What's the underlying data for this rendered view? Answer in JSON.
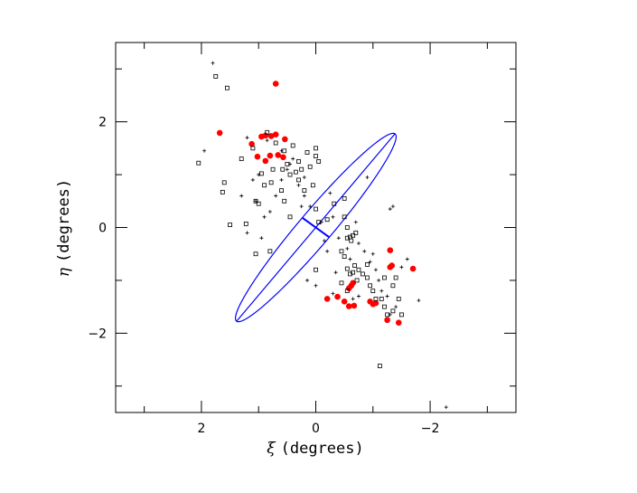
{
  "chart_data": {
    "type": "scatter",
    "xlabel_symbol": "ξ",
    "xlabel_text": "(degrees)",
    "ylabel_symbol": "η",
    "ylabel_text": "(degrees)",
    "xlim": [
      3.5,
      -3.5
    ],
    "ylim": [
      -3.5,
      3.5
    ],
    "x_ticks": [
      2,
      0,
      -2
    ],
    "y_ticks": [
      2,
      0,
      -2
    ],
    "x_tick_labels": [
      "2",
      "0",
      "−2"
    ],
    "y_tick_labels": [
      "2",
      "0",
      "−2"
    ],
    "colors": {
      "axes": "#000000",
      "filled": "#ff0000",
      "ellipse": "#0000ff",
      "open": "#000000"
    },
    "series": [
      {
        "marker": "filled-circle",
        "points": [
          [
            0.7,
            2.72
          ],
          [
            1.68,
            1.79
          ],
          [
            1.12,
            1.58
          ],
          [
            1.02,
            1.34
          ],
          [
            0.95,
            1.72
          ],
          [
            0.88,
            1.74
          ],
          [
            0.78,
            1.73
          ],
          [
            0.7,
            1.76
          ],
          [
            0.54,
            1.67
          ],
          [
            0.8,
            1.36
          ],
          [
            0.88,
            1.26
          ],
          [
            0.66,
            1.37
          ],
          [
            0.57,
            1.33
          ],
          [
            -0.2,
            -1.35
          ],
          [
            -0.38,
            -1.31
          ],
          [
            -0.5,
            -1.4
          ],
          [
            -0.58,
            -1.15
          ],
          [
            -0.62,
            -1.1
          ],
          [
            -0.65,
            -1.05
          ],
          [
            -0.58,
            -1.49
          ],
          [
            -0.67,
            -1.48
          ],
          [
            -0.95,
            -1.4
          ],
          [
            -1.0,
            -1.45
          ],
          [
            -1.05,
            -1.43
          ],
          [
            -1.25,
            -1.75
          ],
          [
            -1.45,
            -1.8
          ],
          [
            -1.3,
            -0.43
          ],
          [
            -1.3,
            -0.75
          ],
          [
            -1.33,
            -0.72
          ],
          [
            -1.7,
            -0.78
          ]
        ]
      },
      {
        "marker": "open-square",
        "points": [
          [
            1.75,
            2.86
          ],
          [
            1.55,
            2.64
          ],
          [
            2.05,
            1.22
          ],
          [
            1.6,
            0.85
          ],
          [
            1.63,
            0.67
          ],
          [
            1.5,
            0.05
          ],
          [
            1.22,
            0.07
          ],
          [
            1.3,
            1.3
          ],
          [
            1.1,
            1.5
          ],
          [
            0.85,
            1.8
          ],
          [
            0.7,
            1.6
          ],
          [
            0.55,
            1.45
          ],
          [
            0.5,
            1.2
          ],
          [
            0.95,
            1.02
          ],
          [
            0.9,
            0.8
          ],
          [
            0.78,
            0.85
          ],
          [
            0.75,
            1.1
          ],
          [
            1.05,
            0.5
          ],
          [
            1.0,
            0.45
          ],
          [
            0.6,
            0.7
          ],
          [
            0.55,
            0.5
          ],
          [
            0.45,
            0.2
          ],
          [
            0.8,
            -0.45
          ],
          [
            1.05,
            -0.5
          ],
          [
            0.1,
            1.15
          ],
          [
            0.0,
            1.35
          ],
          [
            -0.05,
            1.25
          ],
          [
            0.15,
            1.42
          ],
          [
            0.25,
            1.1
          ],
          [
            0.35,
            1.05
          ],
          [
            0.45,
            1.0
          ],
          [
            0.3,
            0.9
          ],
          [
            0.2,
            0.7
          ],
          [
            0.05,
            0.8
          ],
          [
            0.0,
            0.35
          ],
          [
            -0.05,
            0.1
          ],
          [
            -0.2,
            0.15
          ],
          [
            -0.32,
            0.45
          ],
          [
            -0.5,
            0.55
          ],
          [
            -0.5,
            0.2
          ],
          [
            -0.55,
            0.0
          ],
          [
            -0.55,
            -0.2
          ],
          [
            -0.6,
            -0.18
          ],
          [
            -0.62,
            -0.25
          ],
          [
            -0.65,
            -0.15
          ],
          [
            -0.7,
            -0.1
          ],
          [
            -0.45,
            -0.45
          ],
          [
            -0.5,
            -0.55
          ],
          [
            -0.55,
            -0.78
          ],
          [
            -0.6,
            -0.88
          ],
          [
            -0.65,
            -0.85
          ],
          [
            -0.72,
            -1.0
          ],
          [
            -0.75,
            -0.8
          ],
          [
            -0.82,
            -0.88
          ],
          [
            -0.9,
            -0.95
          ],
          [
            -0.95,
            -1.1
          ],
          [
            -1.0,
            -1.2
          ],
          [
            -1.05,
            -1.35
          ],
          [
            -1.15,
            -1.35
          ],
          [
            -1.2,
            -1.5
          ],
          [
            -1.25,
            -1.65
          ],
          [
            -1.35,
            -1.58
          ],
          [
            -1.45,
            -1.35
          ],
          [
            -1.5,
            -1.65
          ],
          [
            -1.2,
            -0.95
          ],
          [
            -1.35,
            -1.1
          ],
          [
            -1.4,
            -0.95
          ],
          [
            -1.12,
            -2.62
          ],
          [
            -0.9,
            -0.7
          ],
          [
            -0.45,
            -1.05
          ],
          [
            -0.55,
            -1.2
          ],
          [
            0.0,
            -0.8
          ],
          [
            0.0,
            1.5
          ],
          [
            0.3,
            1.25
          ],
          [
            0.4,
            1.55
          ],
          [
            0.58,
            1.1
          ],
          [
            -0.68,
            -0.72
          ]
        ]
      },
      {
        "marker": "plus",
        "points": [
          [
            1.8,
            3.11
          ],
          [
            1.95,
            1.45
          ],
          [
            1.2,
            1.7
          ],
          [
            1.1,
            0.9
          ],
          [
            1.0,
            1.0
          ],
          [
            1.05,
            0.5
          ],
          [
            0.8,
            0.3
          ],
          [
            0.7,
            0.6
          ],
          [
            0.6,
            0.9
          ],
          [
            0.5,
            1.1
          ],
          [
            0.4,
            1.3
          ],
          [
            0.3,
            0.8
          ],
          [
            0.2,
            0.6
          ],
          [
            0.1,
            0.4
          ],
          [
            0.9,
            0.2
          ],
          [
            1.3,
            0.6
          ],
          [
            1.2,
            -0.1
          ],
          [
            0.95,
            -0.2
          ],
          [
            -0.1,
            0.1
          ],
          [
            -0.25,
            0.65
          ],
          [
            -0.3,
            0.2
          ],
          [
            -0.4,
            -0.2
          ],
          [
            -0.55,
            -0.4
          ],
          [
            -0.7,
            0.1
          ],
          [
            -0.75,
            -0.3
          ],
          [
            -0.9,
            0.95
          ],
          [
            -0.95,
            -0.65
          ],
          [
            -1.05,
            -0.8
          ],
          [
            -1.1,
            -1.0
          ],
          [
            -1.15,
            -1.2
          ],
          [
            -1.25,
            -1.3
          ],
          [
            -1.3,
            -1.65
          ],
          [
            -1.4,
            -1.5
          ],
          [
            -1.5,
            -0.75
          ],
          [
            -1.6,
            -0.6
          ],
          [
            -1.8,
            -1.38
          ],
          [
            -1.35,
            0.4
          ],
          [
            -1.3,
            0.35
          ],
          [
            0.0,
            -1.1
          ],
          [
            -0.15,
            -0.25
          ],
          [
            -0.2,
            -0.45
          ],
          [
            -0.35,
            -0.85
          ],
          [
            -0.6,
            -0.6
          ],
          [
            0.15,
            -1.0
          ],
          [
            -2.28,
            -3.4
          ],
          [
            -0.3,
            -1.25
          ],
          [
            -0.75,
            -1.3
          ],
          [
            0.85,
            1.65
          ],
          [
            0.6,
            1.45
          ],
          [
            0.45,
            1.2
          ],
          [
            0.2,
            0.95
          ],
          [
            -0.65,
            -1.35
          ],
          [
            0.25,
            0.4
          ],
          [
            -0.85,
            -0.45
          ],
          [
            -1.0,
            -0.5
          ]
        ]
      }
    ],
    "ellipse": {
      "cx": 0.0,
      "cy": 0.0,
      "semi_major": 2.25,
      "semi_minor": 0.3,
      "major_angle_deg": 128
    },
    "grid": false
  }
}
